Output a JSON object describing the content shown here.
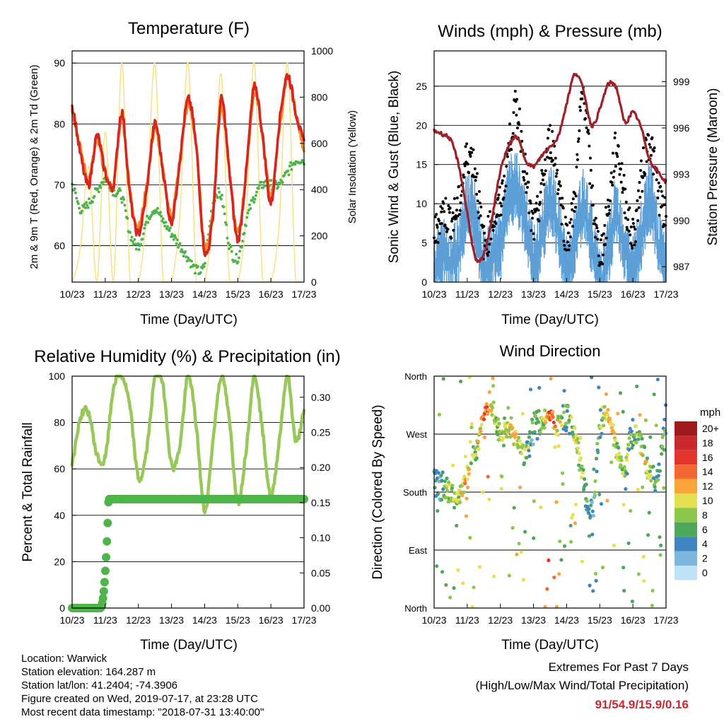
{
  "colors": {
    "temp_2m": "#d6261f",
    "temp_9m": "#f28a2e",
    "dewpoint": "#4fb54a",
    "solar": "#f6e27a",
    "wind": "#5d9fd6",
    "gust": "#000000",
    "pressure": "#a0202a",
    "rh": "#98c85a",
    "precip": "#4fb54a",
    "extremes": "#c8292d"
  },
  "time_ticks": [
    "10/23",
    "11/23",
    "12/23",
    "13/23",
    "14/23",
    "15/23",
    "16/23",
    "17/23"
  ],
  "panels": {
    "temperature": {
      "title": "Temperature (F)",
      "xlabel": "Time (Day/UTC)",
      "ylabel_left": "2m & 9m T (Red, Orange) & 2m Td (Green)",
      "ylabel_right": "Solar Insolation (Yellow)",
      "yticks_left": [
        "60",
        "70",
        "80",
        "90"
      ],
      "yticks_right": [
        "0",
        "200",
        "400",
        "600",
        "800",
        "1000"
      ]
    },
    "wind": {
      "title": "Winds (mph) & Pressure (mb)",
      "xlabel": "Time (Day/UTC)",
      "ylabel_left": "Sonic Wind & Gust (Blue, Black)",
      "ylabel_right": "Station Pressure (Maroon)",
      "yticks_left": [
        "0",
        "5",
        "10",
        "15",
        "20",
        "25"
      ],
      "yticks_right": [
        "987",
        "990",
        "993",
        "996",
        "999"
      ]
    },
    "humidity": {
      "title": "Relative Humidity (%) & Precipitation (in)",
      "xlabel": "Time (Day/UTC)",
      "ylabel_left": "Percent & Total Rainfall",
      "yticks_left": [
        "0",
        "20",
        "40",
        "60",
        "80",
        "100"
      ],
      "yticks_right": [
        "0.00",
        "0.05",
        "0.10",
        "0.15",
        "0.20",
        "0.25",
        "0.30"
      ]
    },
    "direction": {
      "title": "Wind Direction",
      "xlabel": "Time (Day/UTC)",
      "ylabel_left": "Direction (Colored By Speed)",
      "yticks_left": [
        "North",
        "East",
        "South",
        "West",
        "North"
      ],
      "legend_title": "mph",
      "legend_labels": [
        "20+",
        "18",
        "16",
        "14",
        "12",
        "10",
        "8",
        "6",
        "4",
        "2",
        "0"
      ],
      "legend_colors": [
        "#9e1a1f",
        "#c8292d",
        "#e2362c",
        "#f26a32",
        "#f9a53b",
        "#e6df52",
        "#8cc64d",
        "#4ea75b",
        "#3f85c0",
        "#7db7e0",
        "#bfe3f6"
      ]
    }
  },
  "info": {
    "location": "Location: Warwick",
    "elevation": "Station elevation: 164.287 m",
    "latlon": "Station lat/lon: 41.2404; -74.3906",
    "created": "Figure created on Wed, 2019-07-17, at 23:28 UTC",
    "recent": "Most recent data timestamp: \"2018-07-31 13:40:00\""
  },
  "extremes": {
    "heading": "Extremes For Past 7 Days",
    "subheading": "(High/Low/Max Wind/Total Precipitation)",
    "values": "91/54.9/15.9/0.16"
  },
  "chart_data": [
    {
      "type": "line",
      "title": "Temperature (F)",
      "xlabel": "Time (Day/UTC)",
      "x": [
        0,
        0.25,
        0.5,
        0.75,
        1,
        1.25,
        1.5,
        1.75,
        2,
        2.25,
        2.5,
        2.75,
        3,
        3.25,
        3.5,
        3.75,
        4,
        4.25,
        4.5,
        4.75,
        5,
        5.25,
        5.5,
        5.75,
        6,
        6.25,
        6.5,
        6.75,
        7
      ],
      "series": [
        {
          "name": "2m T",
          "axis": "left",
          "values": [
            83,
            75,
            70,
            78,
            72,
            70,
            82,
            68,
            62,
            69,
            80,
            72,
            64,
            74,
            84,
            76,
            59,
            65,
            84,
            72,
            61,
            72,
            86,
            78,
            67,
            80,
            88,
            82,
            77
          ]
        },
        {
          "name": "9m T",
          "axis": "left",
          "values": [
            82,
            76,
            71,
            77,
            72,
            70,
            81,
            69,
            63,
            70,
            79,
            72,
            65,
            74,
            83,
            76,
            60,
            66,
            83,
            72,
            62,
            72,
            85,
            78,
            68,
            79,
            87,
            82,
            76
          ]
        },
        {
          "name": "2m Td",
          "axis": "left",
          "values": [
            70,
            66,
            67,
            69,
            71,
            69,
            68,
            62,
            60,
            64,
            66,
            64,
            62,
            60,
            58,
            56,
            57,
            67,
            68,
            60,
            58,
            64,
            68,
            70,
            70,
            70,
            72,
            74,
            74
          ]
        },
        {
          "name": "Solar",
          "axis": "right",
          "values": [
            0,
            150,
            500,
            0,
            650,
            0,
            950,
            0,
            0,
            300,
            950,
            0,
            0,
            280,
            950,
            0,
            0,
            300,
            900,
            0,
            0,
            280,
            950,
            0,
            0,
            250,
            950,
            0,
            0
          ]
        }
      ],
      "ylim_left": [
        54,
        92
      ],
      "ylim_right": [
        0,
        1000
      ]
    },
    {
      "type": "line",
      "title": "Winds (mph) & Pressure (mb)",
      "xlabel": "Time (Day/UTC)",
      "x": [
        0,
        0.25,
        0.5,
        0.75,
        1,
        1.25,
        1.5,
        1.75,
        2,
        2.25,
        2.5,
        2.75,
        3,
        3.25,
        3.5,
        3.75,
        4,
        4.25,
        4.5,
        4.75,
        5,
        5.25,
        5.5,
        5.75,
        6,
        6.25,
        6.5,
        6.75,
        7
      ],
      "series": [
        {
          "name": "Sonic Wind",
          "axis": "left",
          "values": [
            3,
            5,
            4,
            6,
            11,
            9,
            3,
            5,
            6,
            12,
            13,
            9,
            4,
            7,
            12,
            8,
            3,
            6,
            11,
            7,
            2,
            5,
            10,
            6,
            3,
            7,
            12,
            7,
            4
          ]
        },
        {
          "name": "Gust",
          "axis": "left",
          "values": [
            6,
            9,
            8,
            10,
            16,
            14,
            5,
            8,
            10,
            17,
            22,
            14,
            7,
            12,
            18,
            13,
            6,
            11,
            24,
            12,
            4,
            9,
            17,
            11,
            6,
            13,
            18,
            12,
            8
          ]
        },
        {
          "name": "Pressure",
          "axis": "right",
          "values": [
            995.8,
            995.6,
            995.2,
            993.5,
            990.5,
            987.5,
            987.8,
            990.2,
            993.2,
            994.8,
            995.4,
            994.0,
            993.5,
            994.2,
            994.8,
            995.5,
            997.6,
            999.5,
            998.5,
            996.2,
            997.2,
            998.8,
            998.6,
            996.4,
            997.0,
            996.0,
            994.0,
            993.2,
            992.5
          ]
        }
      ],
      "ylim_left": [
        0,
        29.5
      ],
      "ylim_right": [
        986,
        1001
      ]
    },
    {
      "type": "line",
      "title": "Relative Humidity (%) & Precipitation (in)",
      "xlabel": "Time (Day/UTC)",
      "x": [
        0,
        0.25,
        0.5,
        0.75,
        1,
        1.25,
        1.5,
        1.75,
        2,
        2.25,
        2.5,
        2.75,
        3,
        3.25,
        3.5,
        3.75,
        4,
        4.25,
        4.5,
        4.75,
        5,
        5.25,
        5.5,
        5.75,
        6,
        6.25,
        6.5,
        6.75,
        7
      ],
      "series": [
        {
          "name": "RH",
          "axis": "left",
          "values": [
            63,
            82,
            84,
            66,
            65,
            95,
            100,
            86,
            56,
            68,
            99,
            95,
            62,
            70,
            100,
            78,
            42,
            72,
            100,
            80,
            46,
            68,
            100,
            76,
            48,
            72,
            100,
            72,
            84
          ]
        },
        {
          "name": "Total Precipitation",
          "axis": "right",
          "values": [
            0,
            0,
            0,
            0,
            0,
            0.15,
            0.155,
            0.155,
            0.155,
            0.155,
            0.155,
            0.155,
            0.155,
            0.155,
            0.155,
            0.155,
            0.155,
            0.155,
            0.155,
            0.155,
            0.155,
            0.155,
            0.155,
            0.155,
            0.155,
            0.155,
            0.155,
            0.155,
            0.155
          ]
        }
      ],
      "ylim_left": [
        0,
        100
      ],
      "ylim_right": [
        0,
        0.33
      ]
    },
    {
      "type": "scatter",
      "title": "Wind Direction",
      "xlabel": "Time (Day/UTC)",
      "ylabel": "Direction (Colored By Speed)",
      "x": [
        0,
        0.25,
        0.5,
        0.75,
        1,
        1.25,
        1.5,
        1.75,
        2,
        2.25,
        2.5,
        2.75,
        3,
        3.25,
        3.5,
        3.75,
        4,
        4.25,
        4.5,
        4.75,
        5,
        5.25,
        5.5,
        5.75,
        6,
        6.25,
        6.5,
        6.75,
        7
      ],
      "series": [
        {
          "name": "Direction",
          "values": [
            200,
            190,
            180,
            170,
            210,
            240,
            300,
            310,
            270,
            280,
            260,
            240,
            280,
            290,
            300,
            280,
            300,
            270,
            200,
            150,
            280,
            300,
            250,
            220,
            270,
            250,
            210,
            200,
            280
          ]
        },
        {
          "name": "Speed",
          "values": [
            4,
            6,
            8,
            9,
            11,
            8,
            14,
            10,
            8,
            10,
            9,
            8,
            5,
            8,
            14,
            10,
            6,
            9,
            8,
            5,
            6,
            11,
            9,
            7,
            6,
            9,
            8,
            6,
            5
          ]
        }
      ],
      "ylim": [
        0,
        360
      ],
      "legend": "right"
    }
  ]
}
